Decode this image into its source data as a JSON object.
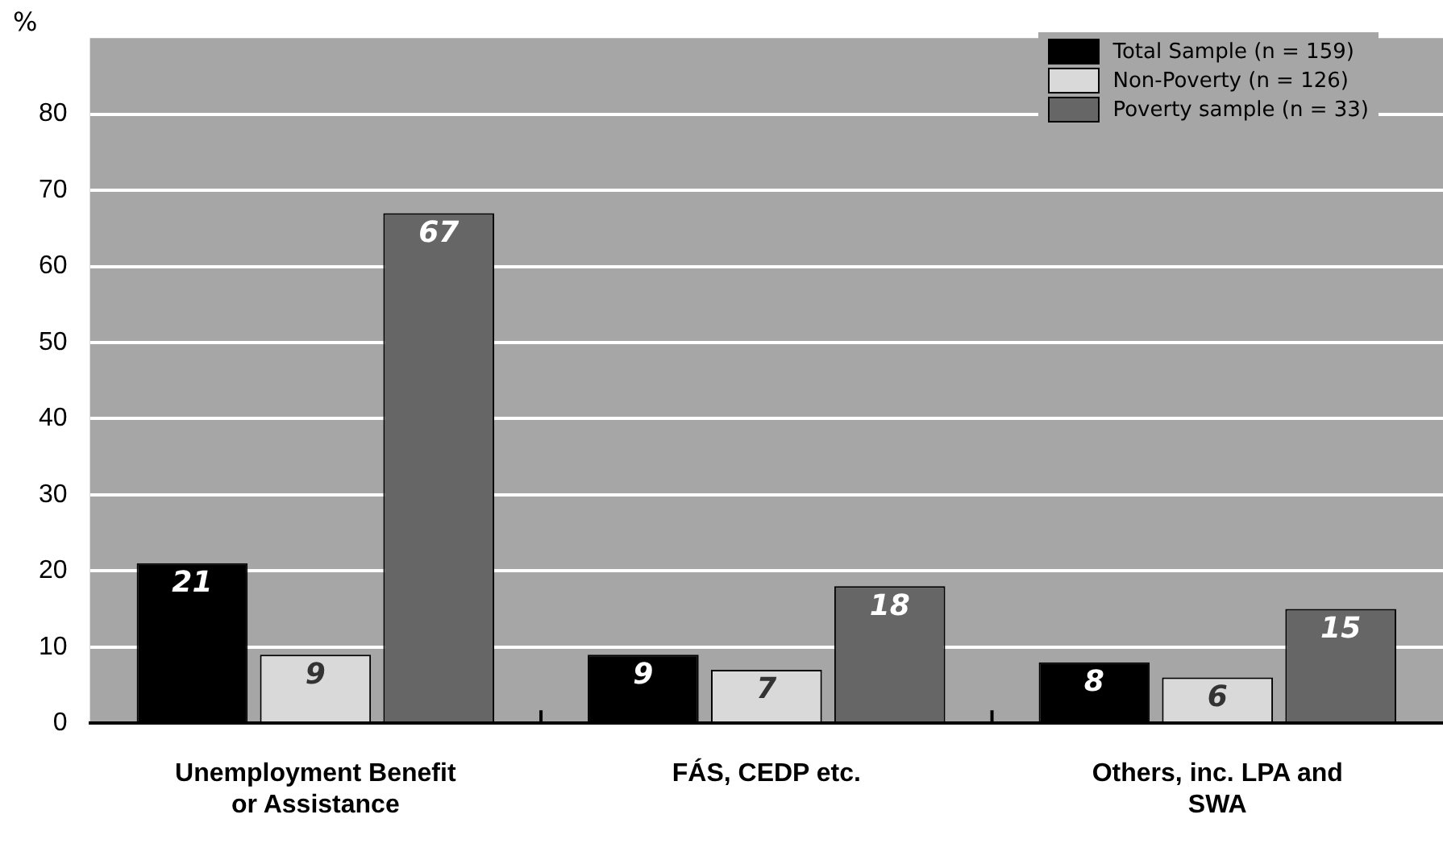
{
  "chart_data": {
    "type": "bar",
    "ylabel": "%",
    "categories": [
      "Unemployment Benefit or Assistance",
      "FÁS, CEDP etc.",
      "Others, inc. LPA and SWA"
    ],
    "series": [
      {
        "name": "Total Sample (n = 159)",
        "color": "#000000",
        "values": [
          21,
          9,
          8
        ]
      },
      {
        "name": "Non-Poverty (n = 126)",
        "color": "#d9d9d9",
        "values": [
          9,
          7,
          6
        ]
      },
      {
        "name": "Poverty sample (n = 33)",
        "color": "#666666",
        "values": [
          67,
          18,
          15
        ]
      }
    ],
    "ylim": [
      0,
      90
    ],
    "yticks": [
      0,
      10,
      20,
      30,
      40,
      50,
      60,
      70,
      80
    ],
    "grid": "y",
    "legend": "top right",
    "data_labels": true
  }
}
